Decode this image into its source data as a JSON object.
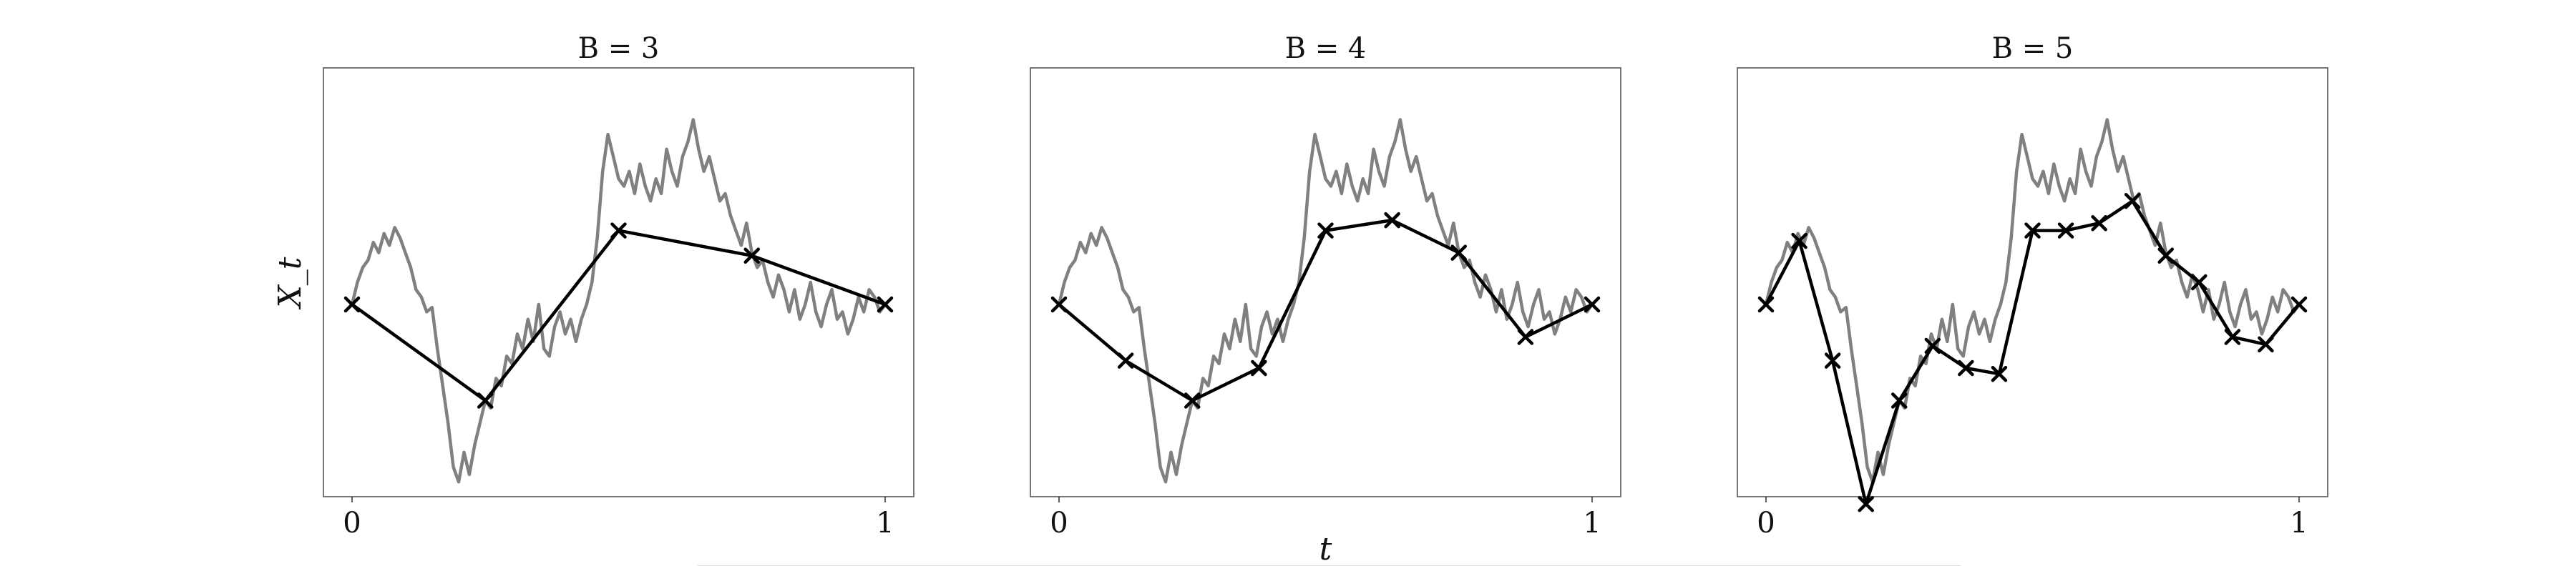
{
  "chart_data": [
    {
      "type": "line",
      "title": "B = 3",
      "xlabel": "",
      "ylabel": "X_t",
      "xlim": [
        0,
        1
      ],
      "ylim": [
        -1.3,
        1.6
      ],
      "x_ticks": [
        "0",
        "1"
      ],
      "grid": false,
      "path": {
        "x": [
          0,
          0.01,
          0.02,
          0.03,
          0.04,
          0.05,
          0.06,
          0.07,
          0.08,
          0.09,
          0.1,
          0.11,
          0.12,
          0.13,
          0.14,
          0.15,
          0.16,
          0.17,
          0.18,
          0.19,
          0.2,
          0.21,
          0.22,
          0.23,
          0.24,
          0.25,
          0.26,
          0.27,
          0.28,
          0.29,
          0.3,
          0.31,
          0.32,
          0.33,
          0.34,
          0.35,
          0.36,
          0.37,
          0.38,
          0.39,
          0.4,
          0.41,
          0.42,
          0.43,
          0.44,
          0.45,
          0.46,
          0.47,
          0.48,
          0.49,
          0.5,
          0.51,
          0.52,
          0.53,
          0.54,
          0.55,
          0.56,
          0.57,
          0.58,
          0.59,
          0.6,
          0.61,
          0.62,
          0.63,
          0.64,
          0.65,
          0.66,
          0.67,
          0.68,
          0.69,
          0.7,
          0.71,
          0.72,
          0.73,
          0.74,
          0.75,
          0.76,
          0.77,
          0.78,
          0.79,
          0.8,
          0.81,
          0.82,
          0.83,
          0.84,
          0.85,
          0.86,
          0.87,
          0.88,
          0.89,
          0.9,
          0.91,
          0.92,
          0.93,
          0.94,
          0.95,
          0.96,
          0.97,
          0.98,
          0.99,
          1.0
        ],
        "y": [
          0,
          0.15,
          0.25,
          0.3,
          0.42,
          0.35,
          0.48,
          0.4,
          0.52,
          0.45,
          0.35,
          0.25,
          0.1,
          0.05,
          -0.05,
          -0.02,
          -0.3,
          -0.55,
          -0.8,
          -1.1,
          -1.2,
          -1.0,
          -1.15,
          -0.95,
          -0.8,
          -0.65,
          -0.7,
          -0.5,
          -0.55,
          -0.35,
          -0.4,
          -0.2,
          -0.3,
          -0.1,
          -0.25,
          0.0,
          -0.3,
          -0.35,
          -0.15,
          -0.05,
          -0.2,
          -0.1,
          -0.25,
          -0.1,
          0.0,
          0.15,
          0.45,
          0.9,
          1.15,
          1.0,
          0.85,
          0.8,
          0.9,
          0.75,
          0.95,
          0.8,
          0.7,
          0.85,
          0.75,
          1.05,
          0.9,
          0.8,
          1.0,
          1.1,
          1.25,
          1.05,
          0.9,
          1.0,
          0.85,
          0.7,
          0.75,
          0.6,
          0.5,
          0.4,
          0.55,
          0.35,
          0.25,
          0.3,
          0.15,
          0.05,
          0.2,
          0.1,
          -0.05,
          0.1,
          -0.1,
          0.0,
          0.15,
          -0.05,
          -0.15,
          0.0,
          0.1,
          -0.1,
          -0.05,
          -0.2,
          -0.1,
          0.05,
          -0.05,
          0.1,
          0.05,
          -0.05,
          0.0
        ]
      },
      "markers": {
        "x": [
          0,
          0.25,
          0.5,
          0.75,
          1
        ],
        "y": [
          0,
          -0.65,
          0.5,
          0.33,
          0
        ]
      }
    },
    {
      "type": "line",
      "title": "B = 4",
      "xlabel": "t",
      "ylabel": "",
      "xlim": [
        0,
        1
      ],
      "ylim": [
        -1.3,
        1.6
      ],
      "x_ticks": [
        "0",
        "1"
      ],
      "grid": false,
      "path": {
        "x": [
          0,
          0.01,
          0.02,
          0.03,
          0.04,
          0.05,
          0.06,
          0.07,
          0.08,
          0.09,
          0.1,
          0.11,
          0.12,
          0.13,
          0.14,
          0.15,
          0.16,
          0.17,
          0.18,
          0.19,
          0.2,
          0.21,
          0.22,
          0.23,
          0.24,
          0.25,
          0.26,
          0.27,
          0.28,
          0.29,
          0.3,
          0.31,
          0.32,
          0.33,
          0.34,
          0.35,
          0.36,
          0.37,
          0.38,
          0.39,
          0.4,
          0.41,
          0.42,
          0.43,
          0.44,
          0.45,
          0.46,
          0.47,
          0.48,
          0.49,
          0.5,
          0.51,
          0.52,
          0.53,
          0.54,
          0.55,
          0.56,
          0.57,
          0.58,
          0.59,
          0.6,
          0.61,
          0.62,
          0.63,
          0.64,
          0.65,
          0.66,
          0.67,
          0.68,
          0.69,
          0.7,
          0.71,
          0.72,
          0.73,
          0.74,
          0.75,
          0.76,
          0.77,
          0.78,
          0.79,
          0.8,
          0.81,
          0.82,
          0.83,
          0.84,
          0.85,
          0.86,
          0.87,
          0.88,
          0.89,
          0.9,
          0.91,
          0.92,
          0.93,
          0.94,
          0.95,
          0.96,
          0.97,
          0.98,
          0.99,
          1.0
        ],
        "y": [
          0,
          0.15,
          0.25,
          0.3,
          0.42,
          0.35,
          0.48,
          0.4,
          0.52,
          0.45,
          0.35,
          0.25,
          0.1,
          0.05,
          -0.05,
          -0.02,
          -0.3,
          -0.55,
          -0.8,
          -1.1,
          -1.2,
          -1.0,
          -1.15,
          -0.95,
          -0.8,
          -0.65,
          -0.7,
          -0.5,
          -0.55,
          -0.35,
          -0.4,
          -0.2,
          -0.3,
          -0.1,
          -0.25,
          0.0,
          -0.3,
          -0.35,
          -0.15,
          -0.05,
          -0.2,
          -0.1,
          -0.25,
          -0.1,
          0.0,
          0.15,
          0.45,
          0.9,
          1.15,
          1.0,
          0.85,
          0.8,
          0.9,
          0.75,
          0.95,
          0.8,
          0.7,
          0.85,
          0.75,
          1.05,
          0.9,
          0.8,
          1.0,
          1.1,
          1.25,
          1.05,
          0.9,
          1.0,
          0.85,
          0.7,
          0.75,
          0.6,
          0.5,
          0.4,
          0.55,
          0.35,
          0.25,
          0.3,
          0.15,
          0.05,
          0.2,
          0.1,
          -0.05,
          0.1,
          -0.1,
          0.0,
          0.15,
          -0.05,
          -0.15,
          0.0,
          0.1,
          -0.1,
          -0.05,
          -0.2,
          -0.1,
          0.05,
          -0.05,
          0.1,
          0.05,
          -0.05,
          0.0
        ]
      },
      "markers": {
        "x": [
          0,
          0.125,
          0.25,
          0.375,
          0.5,
          0.625,
          0.75,
          0.875,
          1
        ],
        "y": [
          0,
          -0.38,
          -0.65,
          -0.43,
          0.5,
          0.57,
          0.35,
          -0.22,
          0
        ]
      }
    },
    {
      "type": "line",
      "title": "B = 5",
      "xlabel": "",
      "ylabel": "",
      "xlim": [
        0,
        1
      ],
      "ylim": [
        -1.3,
        1.6
      ],
      "x_ticks": [
        "0",
        "1"
      ],
      "grid": false,
      "path": {
        "x": [
          0,
          0.01,
          0.02,
          0.03,
          0.04,
          0.05,
          0.06,
          0.07,
          0.08,
          0.09,
          0.1,
          0.11,
          0.12,
          0.13,
          0.14,
          0.15,
          0.16,
          0.17,
          0.18,
          0.19,
          0.2,
          0.21,
          0.22,
          0.23,
          0.24,
          0.25,
          0.26,
          0.27,
          0.28,
          0.29,
          0.3,
          0.31,
          0.32,
          0.33,
          0.34,
          0.35,
          0.36,
          0.37,
          0.38,
          0.39,
          0.4,
          0.41,
          0.42,
          0.43,
          0.44,
          0.45,
          0.46,
          0.47,
          0.48,
          0.49,
          0.5,
          0.51,
          0.52,
          0.53,
          0.54,
          0.55,
          0.56,
          0.57,
          0.58,
          0.59,
          0.6,
          0.61,
          0.62,
          0.63,
          0.64,
          0.65,
          0.66,
          0.67,
          0.68,
          0.69,
          0.7,
          0.71,
          0.72,
          0.73,
          0.74,
          0.75,
          0.76,
          0.77,
          0.78,
          0.79,
          0.8,
          0.81,
          0.82,
          0.83,
          0.84,
          0.85,
          0.86,
          0.87,
          0.88,
          0.89,
          0.9,
          0.91,
          0.92,
          0.93,
          0.94,
          0.95,
          0.96,
          0.97,
          0.98,
          0.99,
          1.0
        ],
        "y": [
          0,
          0.15,
          0.25,
          0.3,
          0.42,
          0.35,
          0.48,
          0.4,
          0.52,
          0.45,
          0.35,
          0.25,
          0.1,
          0.05,
          -0.05,
          -0.02,
          -0.3,
          -0.55,
          -0.8,
          -1.1,
          -1.2,
          -1.0,
          -1.15,
          -0.95,
          -0.8,
          -0.65,
          -0.7,
          -0.5,
          -0.55,
          -0.35,
          -0.4,
          -0.2,
          -0.3,
          -0.1,
          -0.25,
          0.0,
          -0.3,
          -0.35,
          -0.15,
          -0.05,
          -0.2,
          -0.1,
          -0.25,
          -0.1,
          0.0,
          0.15,
          0.45,
          0.9,
          1.15,
          1.0,
          0.85,
          0.8,
          0.9,
          0.75,
          0.95,
          0.8,
          0.7,
          0.85,
          0.75,
          1.05,
          0.9,
          0.8,
          1.0,
          1.1,
          1.25,
          1.05,
          0.9,
          1.0,
          0.85,
          0.7,
          0.75,
          0.6,
          0.5,
          0.4,
          0.55,
          0.35,
          0.25,
          0.3,
          0.15,
          0.05,
          0.2,
          0.1,
          -0.05,
          0.1,
          -0.1,
          0.0,
          0.15,
          -0.05,
          -0.15,
          0.0,
          0.1,
          -0.1,
          -0.05,
          -0.2,
          -0.1,
          0.05,
          -0.05,
          0.1,
          0.05,
          -0.05,
          0.0
        ]
      },
      "markers": {
        "x": [
          0,
          0.0625,
          0.125,
          0.1875,
          0.25,
          0.3125,
          0.375,
          0.4375,
          0.5,
          0.5625,
          0.625,
          0.6875,
          0.75,
          0.8125,
          0.875,
          0.9375,
          1
        ],
        "y": [
          0,
          0.43,
          -0.38,
          -1.35,
          -0.65,
          -0.28,
          -0.43,
          -0.47,
          0.5,
          0.5,
          0.55,
          0.7,
          0.33,
          0.15,
          -0.22,
          -0.27,
          0
        ]
      }
    }
  ]
}
